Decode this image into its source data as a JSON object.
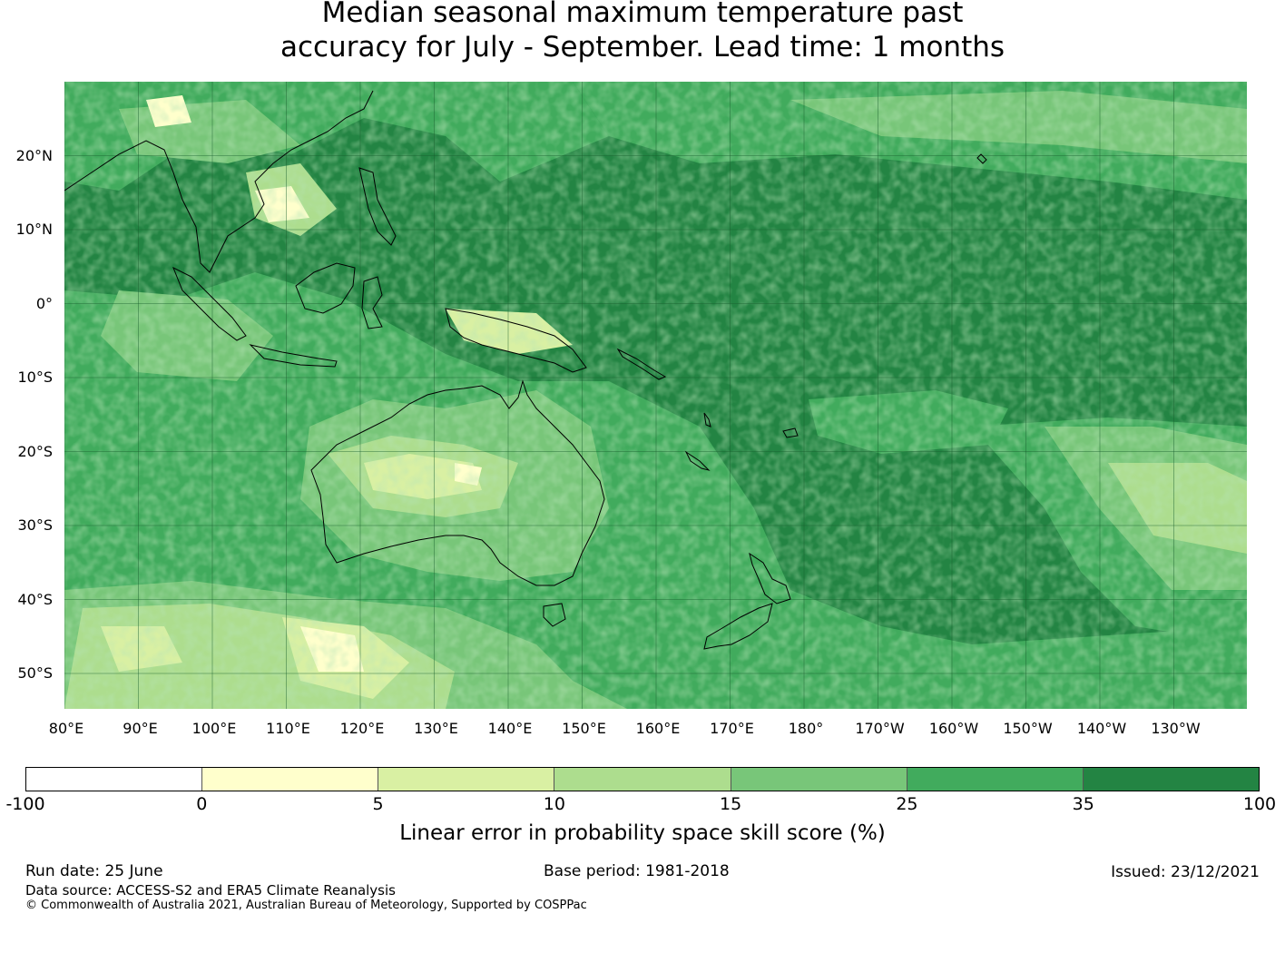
{
  "title": {
    "line1": "Median seasonal maximum temperature past",
    "line2": "accuracy for July - September. Lead time: 1 months"
  },
  "map": {
    "extent": {
      "lon_min": 80,
      "lon_max": 240,
      "lat_min": -55,
      "lat_max": 30
    },
    "lat_ticks": [
      {
        "value": 20,
        "label": "20°N"
      },
      {
        "value": 10,
        "label": "10°N"
      },
      {
        "value": 0,
        "label": "0°"
      },
      {
        "value": -10,
        "label": "10°S"
      },
      {
        "value": -20,
        "label": "20°S"
      },
      {
        "value": -30,
        "label": "30°S"
      },
      {
        "value": -40,
        "label": "40°S"
      },
      {
        "value": -50,
        "label": "50°S"
      }
    ],
    "lon_ticks": [
      {
        "value": 80,
        "label": "80°E"
      },
      {
        "value": 90,
        "label": "90°E"
      },
      {
        "value": 100,
        "label": "100°E"
      },
      {
        "value": 110,
        "label": "110°E"
      },
      {
        "value": 120,
        "label": "120°E"
      },
      {
        "value": 130,
        "label": "130°E"
      },
      {
        "value": 140,
        "label": "140°E"
      },
      {
        "value": 150,
        "label": "150°E"
      },
      {
        "value": 160,
        "label": "160°E"
      },
      {
        "value": 170,
        "label": "170°E"
      },
      {
        "value": 180,
        "label": "180°"
      },
      {
        "value": 190,
        "label": "170°W"
      },
      {
        "value": 200,
        "label": "160°W"
      },
      {
        "value": 210,
        "label": "150°W"
      },
      {
        "value": 220,
        "label": "140°W"
      },
      {
        "value": 230,
        "label": "130°W"
      }
    ],
    "grid": true
  },
  "colorbar": {
    "bounds": [
      "-100",
      "0",
      "5",
      "10",
      "15",
      "25",
      "35",
      "100"
    ],
    "colors": [
      "#ffffff",
      "#ffffcc",
      "#d9f0a3",
      "#addd8e",
      "#78c679",
      "#41ab5d",
      "#238443"
    ],
    "label": "Linear error in probability space skill score (%)"
  },
  "footer": {
    "run_date": "Run date: 25 June",
    "base_period": "Base period: 1981-2018",
    "issued": "Issued: 23/12/2021",
    "data_source": "Data source: ACCESS-S2 and ERA5 Climate Reanalysis",
    "copyright": "© Commonwealth of Australia 2021, Australian Bureau of Meteorology, Supported by COSPPac"
  }
}
